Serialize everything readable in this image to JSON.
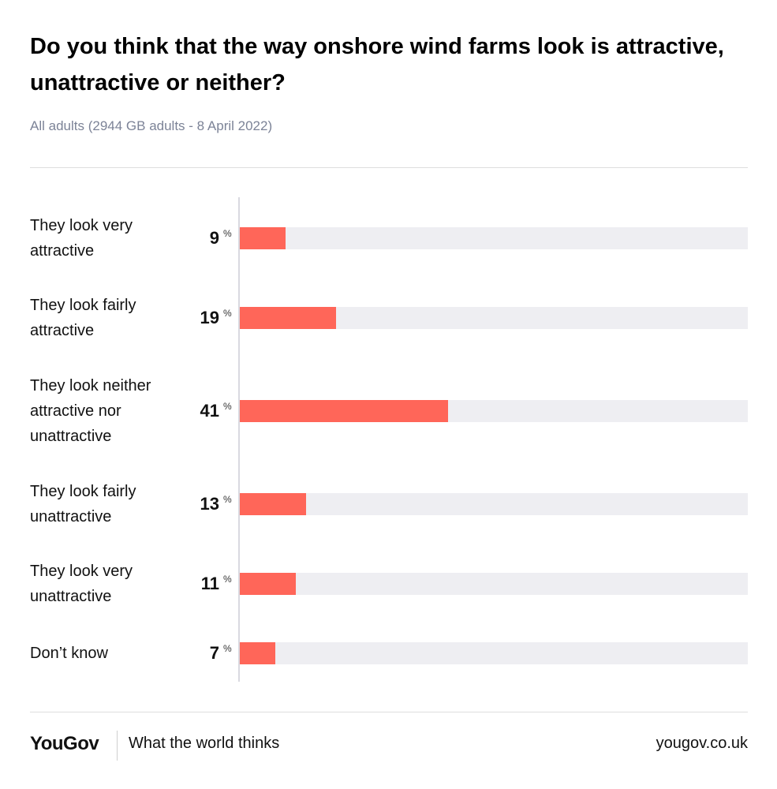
{
  "header": {
    "title": "Do you think that the way onshore wind farms look is attractive, unattractive or neither?",
    "subtitle": "All adults (2944 GB adults - 8 April 2022)"
  },
  "chart_data": {
    "type": "bar",
    "orientation": "horizontal",
    "title": "Do you think that the way onshore wind farms look is attractive, unattractive or neither?",
    "subtitle": "All adults (2944 GB adults - 8 April 2022)",
    "categories": [
      "They look very attractive",
      "They look fairly attractive",
      "They look neither attractive nor unattractive",
      "They look fairly unattractive",
      "They look very unattractive",
      "Don’t know"
    ],
    "values": [
      9,
      19,
      41,
      13,
      11,
      7
    ],
    "value_suffix": "%",
    "xlim": [
      0,
      100
    ],
    "bar_color": "#ff6659",
    "track_color": "#eeeef2",
    "grid": false,
    "legend": "none"
  },
  "footer": {
    "brand": "YouGov",
    "tagline": "What the world thinks",
    "site": "yougov.co.uk"
  }
}
